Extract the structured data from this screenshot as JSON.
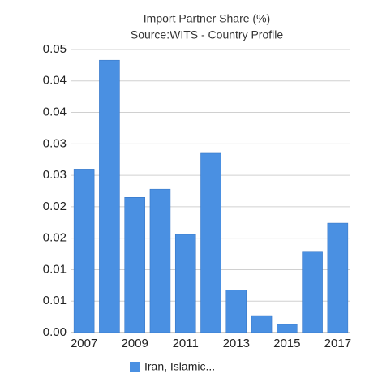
{
  "chart_data": {
    "type": "bar",
    "title": "Import Partner Share (%)",
    "subtitle": "Source:WITS - Country Profile",
    "categories": [
      "2007",
      null,
      "2009",
      null,
      "2011",
      null,
      "2013",
      null,
      "2015",
      null,
      "2017"
    ],
    "series": [
      {
        "name": "Iran, Islamic...",
        "color": "#4a90e2",
        "values": [
          0.026,
          0.0433,
          0.0215,
          0.0228,
          0.0156,
          0.0285,
          0.0068,
          0.0027,
          0.0013,
          0.0128,
          0.0174
        ]
      }
    ],
    "ylim": [
      0,
      0.045
    ],
    "yticks": [
      {
        "value": 0,
        "label": "0.00"
      },
      {
        "value": 0.005,
        "label": "0.01"
      },
      {
        "value": 0.01,
        "label": "0.01"
      },
      {
        "value": 0.015,
        "label": "0.02"
      },
      {
        "value": 0.02,
        "label": "0.02"
      },
      {
        "value": 0.025,
        "label": "0.03"
      },
      {
        "value": 0.03,
        "label": "0.03"
      },
      {
        "value": 0.035,
        "label": "0.04"
      },
      {
        "value": 0.04,
        "label": "0.04"
      },
      {
        "value": 0.045,
        "label": "0.05"
      }
    ],
    "grid": true
  }
}
